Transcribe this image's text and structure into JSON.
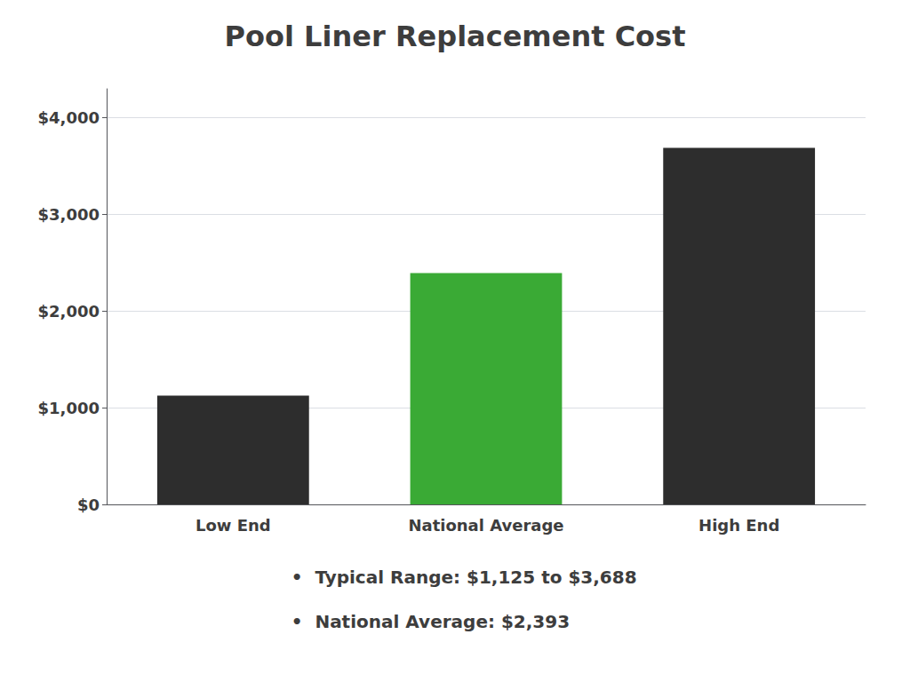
{
  "chart_data": {
    "type": "bar",
    "title": "Pool Liner Replacement Cost",
    "categories": [
      "Low End",
      "National Average",
      "High End"
    ],
    "values": [
      1125,
      2393,
      3688
    ],
    "colors": [
      "#2d2d2d",
      "#3aaa35",
      "#2d2d2d"
    ],
    "ylim": [
      0,
      4300
    ],
    "yticks": [
      {
        "value": 0,
        "label": "$0"
      },
      {
        "value": 1000,
        "label": "$1,000"
      },
      {
        "value": 2000,
        "label": "$2,000"
      },
      {
        "value": 3000,
        "label": "$3,000"
      },
      {
        "value": 4000,
        "label": "$4,000"
      }
    ],
    "grid": true,
    "annotations": [
      "•  Typical Range: $1,125 to $3,688",
      "•  National Average: $2,393"
    ]
  }
}
